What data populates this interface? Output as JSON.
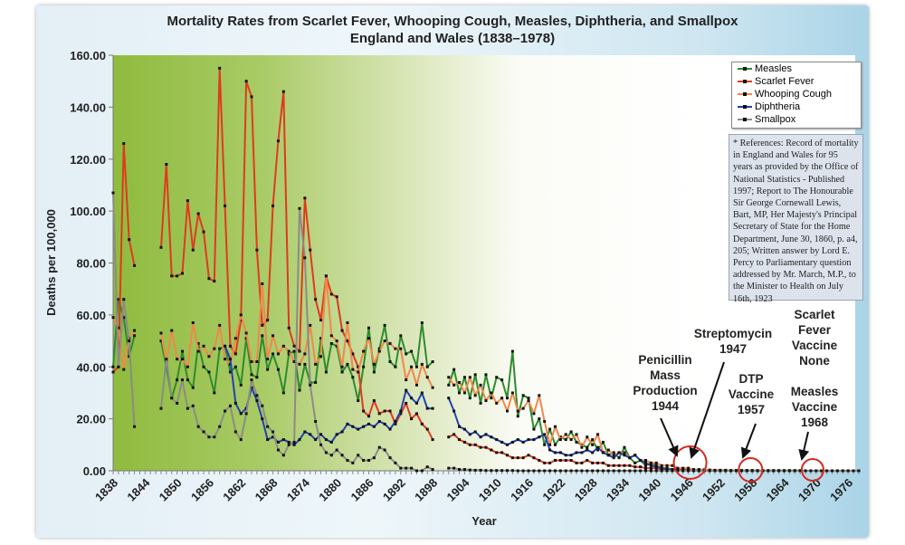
{
  "chart_data": {
    "type": "line",
    "title": "Mortality Rates from Scarlet Fever, Whooping Cough, Measles, Diphtheria, and Smallpox",
    "subtitle": "England and Wales (1838–1978)",
    "xlabel": "Year",
    "ylabel": "Deaths per 100,000",
    "xlim": [
      1838,
      1978
    ],
    "ylim": [
      0,
      160
    ],
    "y_ticks": [
      "0.00",
      "20.00",
      "40.00",
      "60.00",
      "80.00",
      "100.00",
      "120.00",
      "140.00",
      "160.00"
    ],
    "x_ticks": [
      "1838",
      "1844",
      "1850",
      "1856",
      "1862",
      "1868",
      "1874",
      "1880",
      "1886",
      "1892",
      "1898",
      "1904",
      "1910",
      "1916",
      "1922",
      "1928",
      "1934",
      "1940",
      "1946",
      "1952",
      "1958",
      "1964",
      "1970",
      "1976"
    ],
    "legend_position": "top-right",
    "grid": false,
    "series": [
      {
        "name": "Measles",
        "color": "#2e8b2e",
        "segments": [
          {
            "start": 1838,
            "values": [
              40,
              66,
              59,
              44,
              52
            ]
          },
          {
            "start": 1847,
            "values": [
              50,
              40,
              28,
              35,
              46,
              35,
              32,
              49,
              40,
              38,
              30,
              47,
              48,
              38,
              40,
              33,
              51,
              37,
              36,
              52,
              39,
              45,
              39,
              30,
              45,
              46,
              31,
              41,
              34,
              34,
              51,
              38,
              49,
              48,
              38,
              41,
              36,
              27,
              40,
              55,
              38,
              47,
              56,
              42,
              40,
              52,
              45,
              46,
              40,
              57,
              40,
              42
            ]
          },
          {
            "start": 1901,
            "values": [
              33,
              39,
              30,
              36,
              28,
              37,
              26,
              37,
              28,
              36,
              35,
              28,
              46,
              21,
              29,
              28,
              16,
              20,
              10,
              16,
              10,
              13,
              12,
              15,
              11,
              10,
              9,
              12,
              8,
              11,
              6,
              7,
              5,
              9,
              5,
              3,
              4,
              2,
              3,
              2,
              1,
              1,
              0.5,
              0.5,
              0.4,
              0.3,
              0.3,
              0.2,
              0.2,
              0.2,
              0.2,
              0.2,
              0.2,
              0.1,
              0.1,
              0.1,
              0.1,
              0.1,
              0.1,
              0.1,
              0.1,
              0.1,
              0.1,
              0.1,
              0.1,
              0.1,
              0.1,
              0,
              0,
              0,
              0,
              0,
              0,
              0,
              0,
              0,
              0,
              0
            ]
          }
        ]
      },
      {
        "name": "Scarlet Fever",
        "color": "#e03a1e",
        "segments": [
          {
            "start": 1838,
            "values": [
              38,
              40,
              126,
              89,
              79
            ]
          },
          {
            "start": 1847,
            "values": [
              86,
              118,
              75,
              75,
              76,
              104,
              85,
              99,
              92,
              74,
              73,
              155,
              102,
              48,
              45,
              58,
              150,
              144,
              85,
              56,
              58,
              102,
              127,
              146,
              55,
              48,
              46,
              105,
              85,
              66,
              58,
              75,
              68,
              67,
              54,
              50,
              45,
              40,
              23,
              21,
              27,
              22,
              23,
              23,
              18,
              22,
              26,
              20,
              22,
              18,
              16,
              12
            ]
          },
          {
            "start": 1901,
            "values": [
              13,
              14,
              12,
              11,
              10,
              10,
              9,
              9,
              8,
              7,
              7,
              6,
              5,
              5,
              5,
              6,
              5,
              4,
              3,
              3,
              4,
              4,
              4,
              4,
              3,
              3,
              4,
              3,
              3,
              3,
              2,
              2,
              2,
              2,
              2,
              1.5,
              1.5,
              1,
              1,
              1,
              0.5,
              0.5,
              0.4,
              0.3,
              0.2,
              0.2,
              0.1,
              0.1,
              0.1,
              0.1,
              0.1,
              0.1,
              0,
              0,
              0,
              0,
              0,
              0,
              0,
              0,
              0,
              0,
              0,
              0,
              0,
              0,
              0,
              0,
              0,
              0,
              0,
              0,
              0,
              0,
              0,
              0,
              0,
              0
            ]
          }
        ]
      },
      {
        "name": "Whooping Cough",
        "color": "#f0884a",
        "segments": [
          {
            "start": 1838,
            "values": [
              59,
              55,
              39,
              51,
              54
            ]
          },
          {
            "start": 1847,
            "values": [
              53,
              42,
              54,
              43,
              43,
              40,
              57,
              46,
              48,
              44,
              47,
              56,
              43,
              41,
              51,
              60,
              53,
              42,
              42,
              72,
              43,
              52,
              45,
              48,
              46,
              42,
              41,
              45,
              56,
              41,
              44,
              75,
              52,
              50,
              40,
              57,
              39,
              38,
              46,
              51,
              41,
              46,
              50,
              49,
              47,
              47,
              35,
              40,
              33,
              41,
              36,
              32
            ]
          },
          {
            "start": 1901,
            "values": [
              36,
              33,
              34,
              30,
              36,
              29,
              33,
              27,
              30,
              26,
              28,
              23,
              30,
              23,
              24,
              27,
              22,
              29,
              19,
              10,
              17,
              12,
              14,
              12,
              14,
              9,
              13,
              10,
              14,
              7,
              8,
              6,
              7,
              7,
              5,
              6,
              4,
              4,
              3,
              3,
              2,
              2,
              2,
              1,
              1,
              1,
              0.5,
              0.5,
              0.4,
              0.3,
              0.2,
              0.2,
              0.1,
              0.1,
              0.1,
              0.1,
              0.1,
              0.1,
              0,
              0,
              0,
              0,
              0,
              0,
              0,
              0,
              0,
              0,
              0,
              0,
              0,
              0,
              0,
              0,
              0,
              0,
              0,
              0
            ]
          }
        ]
      },
      {
        "name": "Diphtheria",
        "color": "#2340b0",
        "segments": [
          {
            "start": 1859,
            "values": [
              48,
              43,
              26,
              22,
              24,
              32,
              27,
              20,
              12,
              13,
              11,
              12,
              11,
              10,
              12,
              15,
              14,
              12,
              14,
              12,
              11,
              14,
              15,
              18,
              17,
              16,
              17,
              18,
              17,
              19,
              18,
              16,
              19,
              23,
              31,
              28,
              26,
              30,
              24,
              24
            ]
          },
          {
            "start": 1901,
            "values": [
              28,
              23,
              17,
              16,
              14,
              15,
              13,
              14,
              13,
              12,
              11,
              10,
              11,
              12,
              11,
              12,
              12,
              13,
              14,
              8,
              7,
              7,
              6,
              6,
              7,
              7,
              8,
              7,
              9,
              7,
              6,
              5,
              7,
              6,
              5,
              6,
              4,
              3,
              2,
              1.5,
              1,
              0.5,
              0.3,
              0.2,
              0.1,
              0.1,
              0.1,
              0.1,
              0,
              0,
              0,
              0,
              0,
              0,
              0,
              0,
              0,
              0,
              0,
              0,
              0,
              0,
              0,
              0,
              0,
              0,
              0,
              0,
              0,
              0,
              0,
              0,
              0,
              0,
              0,
              0,
              0,
              0
            ]
          }
        ]
      },
      {
        "name": "Smallpox",
        "color": "#8c8c84",
        "segments": [
          {
            "start": 1838,
            "values": [
              107,
              40,
              66,
              50,
              17
            ]
          },
          {
            "start": 1847,
            "values": [
              24,
              43,
              28,
              26,
              35,
              24,
              25,
              17,
              15,
              13,
              13,
              17,
              23,
              25,
              15,
              12,
              22,
              35,
              29,
              25,
              17,
              15,
              8,
              6,
              10,
              11,
              101,
              82,
              33,
              19,
              10,
              7,
              6,
              8,
              6,
              4,
              3,
              6,
              4,
              4,
              5,
              9,
              8,
              5,
              3,
              1,
              1,
              1,
              0,
              0,
              1.5,
              0.5
            ]
          },
          {
            "start": 1901,
            "values": [
              1,
              1,
              0.5,
              0.5,
              0.3,
              0.2,
              0.2,
              0.1,
              0.1,
              0.1,
              0.1,
              0.1,
              0.1,
              0,
              0,
              0,
              0,
              0,
              0,
              0,
              0,
              0,
              0,
              0,
              0,
              0,
              0,
              0,
              0,
              0,
              0,
              0,
              0,
              0,
              0,
              0,
              0,
              0,
              0,
              0,
              0,
              0,
              0,
              0,
              0,
              0,
              0,
              0,
              0,
              0,
              0,
              0,
              0,
              0,
              0,
              0,
              0,
              0,
              0,
              0,
              0,
              0,
              0,
              0,
              0,
              0,
              0,
              0,
              0,
              0,
              0,
              0,
              0,
              0,
              0,
              0,
              0,
              0
            ]
          }
        ]
      }
    ],
    "annotations": [
      {
        "text": "Penicillin\nMass\nProduction\n1944",
        "year": 1946
      },
      {
        "text": "Streptomycin\n1947",
        "year": 1947
      },
      {
        "text": "DTP\nVaccine\n1957",
        "year": 1957
      },
      {
        "text": "Scarlet\nFever\nVaccine\nNone",
        "year": null
      },
      {
        "text": "Measles\nVaccine\n1968",
        "year": 1968
      }
    ],
    "annotation_color": "#d42a20"
  },
  "references": "* References: Record of mortality in England and Wales for 95 years as provided by the Office of National Statistics - Published 1997; Report to The Honourable Sir George Cornewall Lewis, Bart, MP, Her Majesty's Principal Secretary of State for the Home Department, June 30, 1860, p. a4, 205; Written answer by Lord E. Percy to Parliamentary question addressed by Mr. March, M.P., to the Minister to Health on July 16th, 1923"
}
